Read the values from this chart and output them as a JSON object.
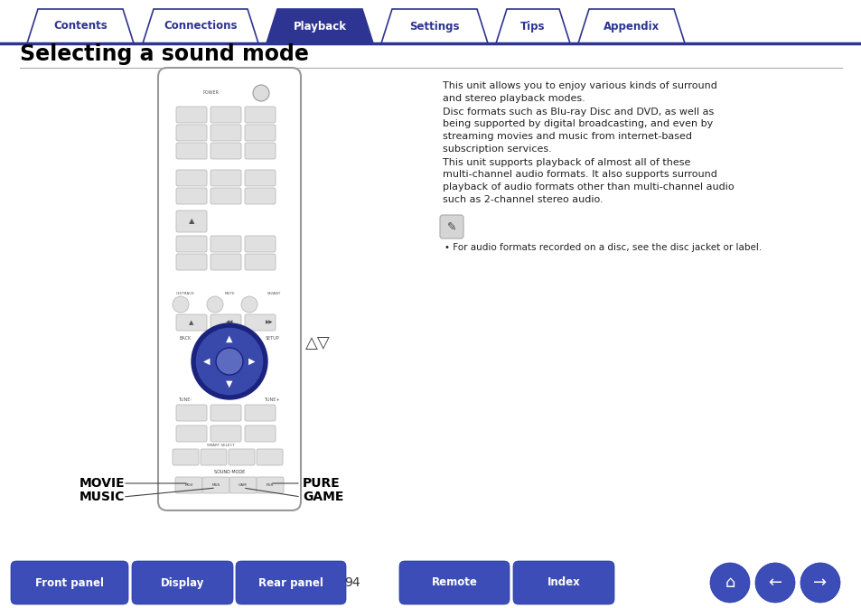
{
  "bg_color": "#ffffff",
  "tab_labels": [
    "Contents",
    "Connections",
    "Playback",
    "Settings",
    "Tips",
    "Appendix"
  ],
  "tab_active_idx": 2,
  "tab_color_active": "#2e3491",
  "tab_color_inactive": "#ffffff",
  "tab_text_color_active": "#ffffff",
  "tab_text_color_inactive": "#2e3491",
  "tab_border_color": "#2e3491",
  "title": "Selecting a sound mode",
  "title_color": "#000000",
  "divider_color": "#2e3491",
  "body_paragraphs": [
    "This unit allows you to enjoy various kinds of surround and stereo playback modes.",
    "Disc formats such as Blu-ray Disc and DVD, as well as being supported by digital broadcasting, and even by streaming movies and music from internet-based subscription services.",
    "This unit supports playback of almost all of these multi-channel audio formats. It also supports surround playback of audio formats other than multi-channel audio such as 2-channel stereo audio."
  ],
  "note_text": "• For audio formats recorded on a disc, see the disc jacket or label.",
  "label_movie": "MOVIE",
  "label_music": "MUSIC",
  "label_pure": "PURE",
  "label_game": "GAME",
  "arrow_label": "△▽",
  "bottom_buttons": [
    "Front panel",
    "Display",
    "Rear panel",
    "Remote",
    "Index"
  ],
  "page_number": "94",
  "btn_color": "#3d4db7",
  "btn_text_color": "#ffffff",
  "remote_border": "#888888",
  "remote_bg": "#ffffff",
  "dpad_outer": "#1a237e",
  "dpad_inner": "#3949ab",
  "dpad_center": "#5c6bc0"
}
